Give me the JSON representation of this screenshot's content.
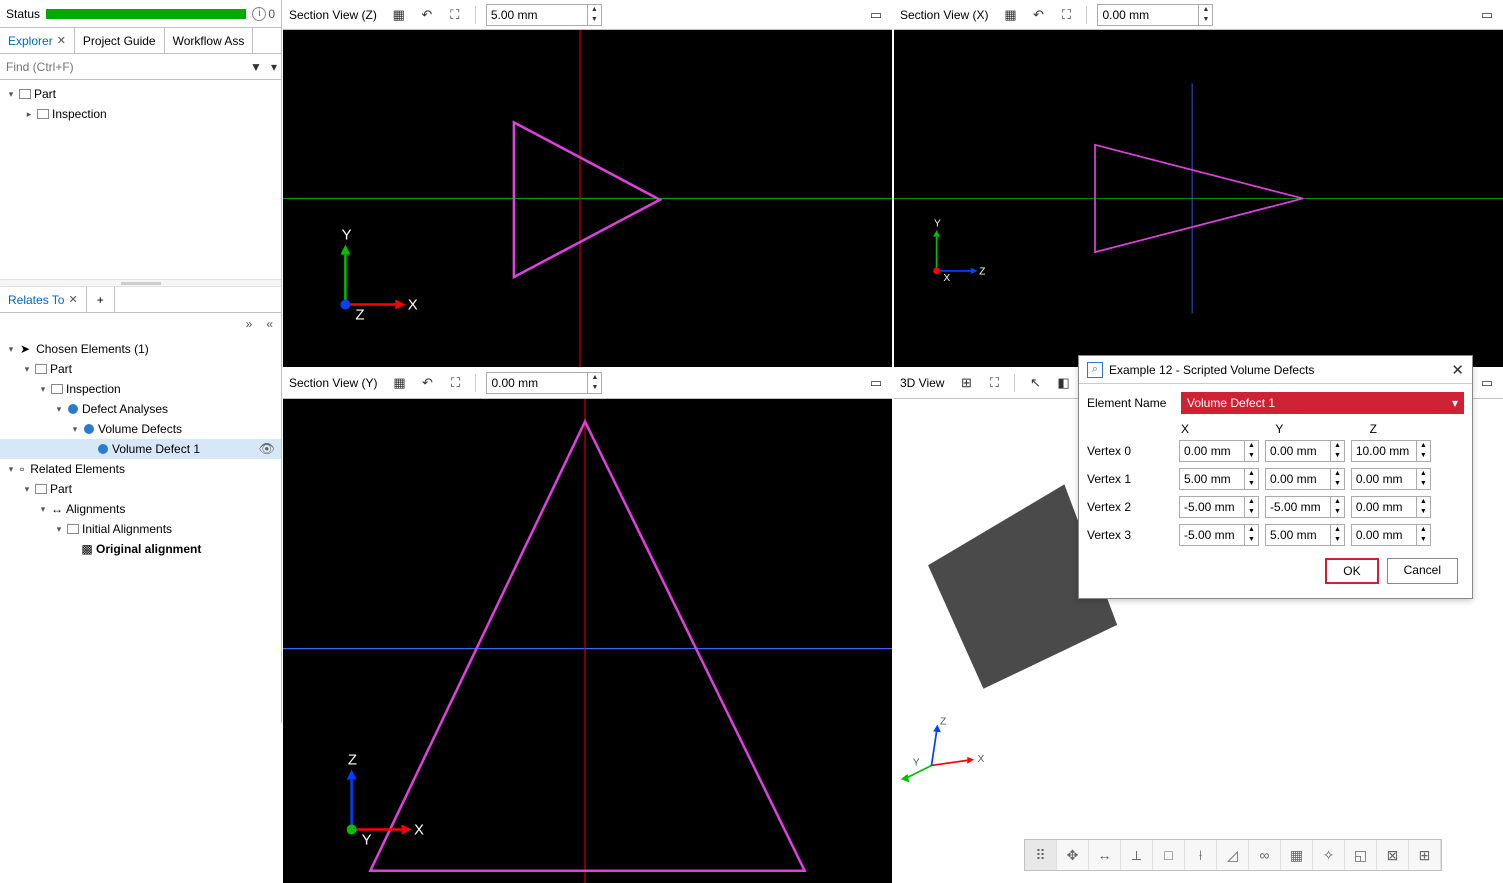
{
  "status": {
    "label": "Status",
    "info_count": 0
  },
  "left_tabs": {
    "explorer": "Explorer",
    "project_guide": "Project Guide",
    "workflow": "Workflow Ass"
  },
  "find": {
    "placeholder": "Find (Ctrl+F)"
  },
  "tree_top": {
    "part": "Part",
    "inspection": "Inspection"
  },
  "relates": {
    "tab": "Relates To"
  },
  "chosen": {
    "header": "Chosen Elements (1)",
    "part": "Part",
    "inspection": "Inspection",
    "analyses": "Defect Analyses",
    "volume_defects": "Volume Defects",
    "defect1": "Volume Defect 1"
  },
  "related": {
    "header": "Related Elements",
    "part": "Part",
    "alignments": "Alignments",
    "initial": "Initial Alignments",
    "original": "Original alignment"
  },
  "viewports": {
    "z": {
      "title": "Section View (Z)",
      "value": "5.00 mm"
    },
    "x": {
      "title": "Section View (X)",
      "value": "0.00 mm"
    },
    "y": {
      "title": "Section View (Y)",
      "value": "0.00 mm"
    },
    "d3": {
      "title": "3D View"
    }
  },
  "axis_colors": {
    "x": "#ff0000",
    "y": "#00c000",
    "z": "#0040ff",
    "label": "#ffffff"
  },
  "triangle_color": "#e040e0",
  "crosshair": {
    "v_color": "#c00000",
    "h_color": "#00a000",
    "blue": "#4060ff"
  },
  "quad3d": {
    "fill": "#4a4a4a"
  },
  "dialog": {
    "title": "Example 12 - Scripted Volume Defects",
    "elem_label": "Element Name",
    "elem_value": "Volume Defect 1",
    "cols": {
      "x": "X",
      "y": "Y",
      "z": "Z"
    },
    "rows": [
      {
        "label": "Vertex 0",
        "x": "0.00 mm",
        "y": "0.00 mm",
        "z": "10.00 mm"
      },
      {
        "label": "Vertex 1",
        "x": "5.00 mm",
        "y": "0.00 mm",
        "z": "0.00 mm"
      },
      {
        "label": "Vertex 2",
        "x": "-5.00 mm",
        "y": "-5.00 mm",
        "z": "0.00 mm"
      },
      {
        "label": "Vertex 3",
        "x": "-5.00 mm",
        "y": "5.00 mm",
        "z": "0.00 mm"
      }
    ],
    "ok": "OK",
    "cancel": "Cancel"
  }
}
